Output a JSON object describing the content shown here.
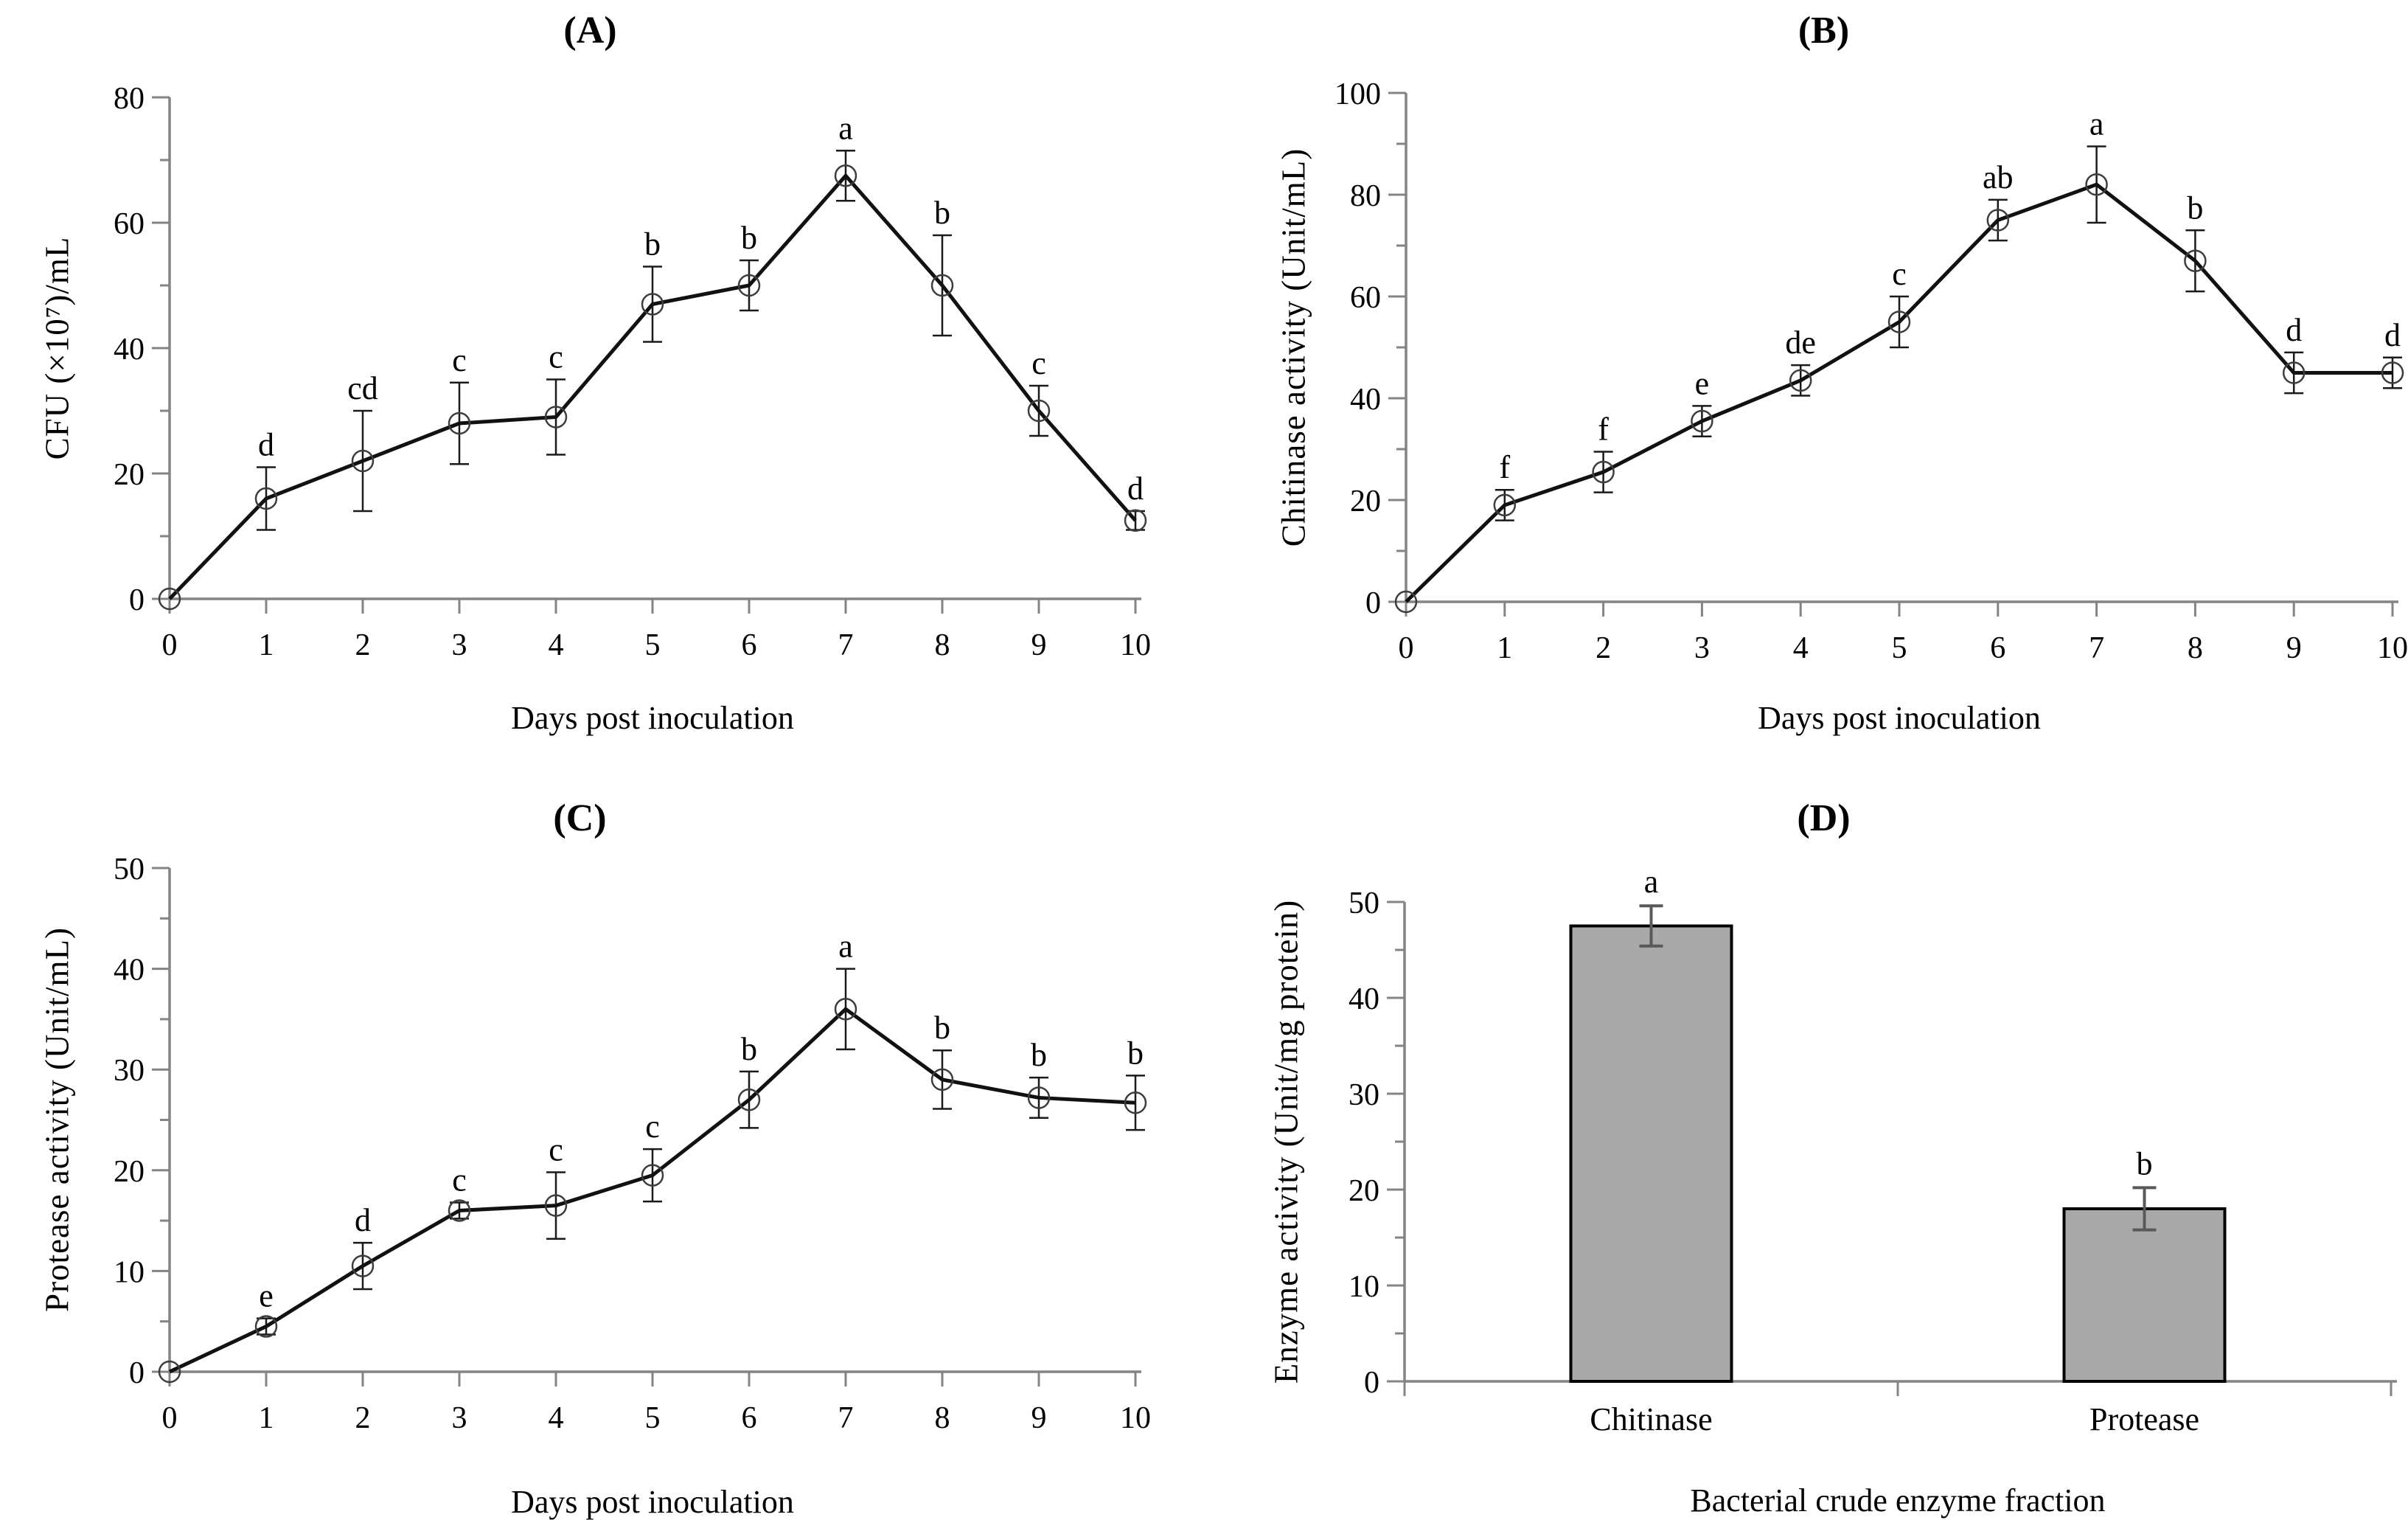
{
  "colors": {
    "axis": "#848484",
    "line": "#111111",
    "marker_stroke": "#3d3d3d",
    "error_line": "#1a1a1a",
    "bar_fill": "#a9a9a9",
    "bar_border": "#000000",
    "bar_error": "#595959",
    "text": "#000000"
  },
  "chart_data": [
    {
      "panel": "A",
      "title": "(A)",
      "type": "line",
      "xlabel": "Days post inoculation",
      "ylabel": "CFU (×10⁷)/mL",
      "x": [
        0,
        1,
        2,
        3,
        4,
        5,
        6,
        7,
        8,
        9,
        10
      ],
      "y": [
        0,
        16,
        22,
        28,
        29,
        47,
        50,
        67.5,
        50,
        30,
        12.5
      ],
      "yerr": [
        0,
        5,
        8,
        6.5,
        6,
        6,
        4,
        4,
        8,
        4,
        1.5
      ],
      "point_labels": [
        "",
        "d",
        "cd",
        "c",
        "c",
        "b",
        "b",
        "a",
        "b",
        "c",
        "d"
      ],
      "ylim": [
        0,
        80
      ],
      "ytick_major": 20,
      "ytick_minor": 10,
      "marker": "open-circle",
      "grid": false,
      "legend": "none"
    },
    {
      "panel": "B",
      "title": "(B)",
      "type": "line",
      "xlabel": "Days post inoculation",
      "ylabel": "Chitinase activity (Unit/mL)",
      "x": [
        0,
        1,
        2,
        3,
        4,
        5,
        6,
        7,
        8,
        9,
        10
      ],
      "y": [
        0,
        19,
        25.5,
        35.5,
        43.5,
        55,
        75,
        82,
        67,
        45,
        45
      ],
      "yerr": [
        0,
        3,
        4,
        3,
        3,
        5,
        4,
        7.5,
        6,
        4,
        3
      ],
      "point_labels": [
        "",
        "f",
        "f",
        "e",
        "de",
        "c",
        "ab",
        "a",
        "b",
        "d",
        "d"
      ],
      "ylim": [
        0,
        100
      ],
      "ytick_major": 20,
      "ytick_minor": 10,
      "marker": "open-circle",
      "grid": false,
      "legend": "none"
    },
    {
      "panel": "C",
      "title": "(C)",
      "type": "line",
      "xlabel": "Days post inoculation",
      "ylabel": "Protease activity (Unit/mL)",
      "x": [
        0,
        1,
        2,
        3,
        4,
        5,
        6,
        7,
        8,
        9,
        10
      ],
      "y": [
        0,
        4.5,
        10.5,
        16,
        16.5,
        19.5,
        27,
        36,
        29,
        27.2,
        26.7
      ],
      "yerr": [
        0,
        0.8,
        2.3,
        0.8,
        3.3,
        2.6,
        2.8,
        4,
        2.9,
        2,
        2.7
      ],
      "point_labels": [
        "",
        "e",
        "d",
        "c",
        "c",
        "c",
        "b",
        "a",
        "b",
        "b",
        "b"
      ],
      "ylim": [
        0,
        50
      ],
      "ytick_major": 10,
      "ytick_minor": 5,
      "marker": "open-circle",
      "grid": false,
      "legend": "none"
    },
    {
      "panel": "D",
      "title": "(D)",
      "type": "bar",
      "xlabel": "Bacterial crude enzyme fraction",
      "ylabel": "Enzyme activity (Unit/mg protein)",
      "categories": [
        "Chitinase",
        "Protease"
      ],
      "values": [
        47.5,
        18
      ],
      "errors": [
        2.1,
        2.2
      ],
      "bar_labels": [
        "a",
        "b"
      ],
      "ylim": [
        0,
        50
      ],
      "ytick_major": 10,
      "ytick_minor": 5,
      "bar_fill": "#a9a9a9",
      "grid": false,
      "legend": "none"
    }
  ]
}
